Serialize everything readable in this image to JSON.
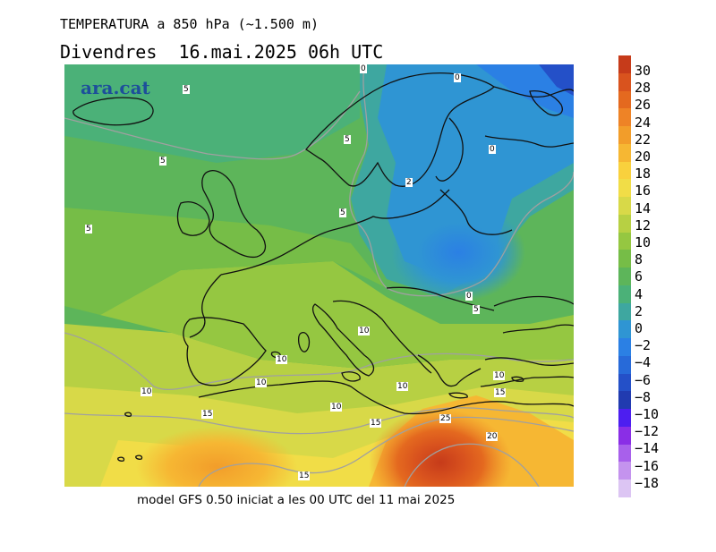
{
  "header": {
    "title": "TEMPERATURA a 850 hPa (~1.500 m)",
    "subtitle": "Divendres  16.mai.2025 06h UTC"
  },
  "footer": {
    "text": "model GFS 0.50 iniciat a les 00 UTC del 11 mai 2025"
  },
  "logo": {
    "text": "ara.cat"
  },
  "colorbar": {
    "labels": [
      "30",
      "28",
      "26",
      "24",
      "22",
      "20",
      "18",
      "16",
      "14",
      "12",
      "10",
      "8",
      "6",
      "4",
      "2",
      "0",
      "−2",
      "−4",
      "−6",
      "−8",
      "−10",
      "−12",
      "−14",
      "−16",
      "−18"
    ],
    "colors": [
      "#c63b1a",
      "#d9531e",
      "#e4691f",
      "#ee8326",
      "#f29d2a",
      "#f6b733",
      "#f9d13d",
      "#f1dd47",
      "#d8d948",
      "#b7d043",
      "#95c741",
      "#76bd47",
      "#5db55a",
      "#4bb178",
      "#3ea7a0",
      "#2f95d3",
      "#2b80e4",
      "#276ad9",
      "#2450c8",
      "#213bb0",
      "#4d1ef0",
      "#8a2ee6",
      "#a860eb",
      "#c493ee",
      "#dcc5f3"
    ]
  },
  "contour_labels": [
    {
      "text": "0"
    },
    {
      "text": "0"
    },
    {
      "text": "5"
    },
    {
      "text": "5"
    },
    {
      "text": "5"
    },
    {
      "text": "0"
    },
    {
      "text": "2"
    },
    {
      "text": "5"
    },
    {
      "text": "5"
    },
    {
      "text": "0"
    },
    {
      "text": "5"
    },
    {
      "text": "10"
    },
    {
      "text": "10"
    },
    {
      "text": "10"
    },
    {
      "text": "10"
    },
    {
      "text": "10"
    },
    {
      "text": "10"
    },
    {
      "text": "10"
    },
    {
      "text": "15"
    },
    {
      "text": "15"
    },
    {
      "text": "25"
    },
    {
      "text": "15"
    },
    {
      "text": "20"
    },
    {
      "text": "15"
    }
  ]
}
